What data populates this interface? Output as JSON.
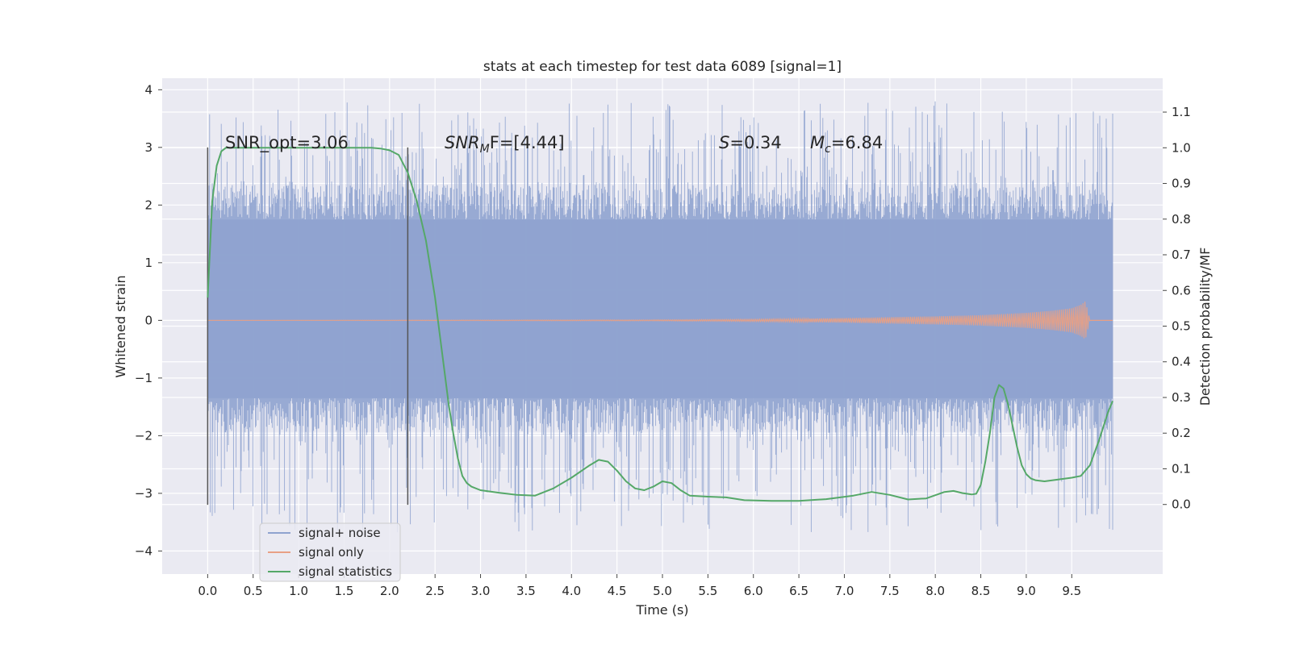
{
  "chart_data": {
    "type": "line",
    "title": "stats at each timestep for test data 6089 [signal=1]",
    "xlabel": "Time (s)",
    "ylabel": "Whitened strain",
    "ylabel_right": "Detection probability/MF",
    "xlim": [
      -0.5,
      10.5
    ],
    "ylim": [
      -4.4,
      4.2
    ],
    "ylim_right": [
      -0.195,
      1.195
    ],
    "x_ticks": [
      "0.0",
      "0.5",
      "1.0",
      "1.5",
      "2.0",
      "2.5",
      "3.0",
      "3.5",
      "4.0",
      "4.5",
      "5.0",
      "5.5",
      "6.0",
      "6.5",
      "7.0",
      "7.5",
      "8.0",
      "8.5",
      "9.0",
      "9.5"
    ],
    "y_ticks": [
      "4",
      "3",
      "2",
      "1",
      "0",
      "−1",
      "−2",
      "−3",
      "−4"
    ],
    "y_right_ticks": [
      "1.1",
      "1.0",
      "0.9",
      "0.8",
      "0.7",
      "0.6",
      "0.5",
      "0.4",
      "0.3",
      "0.2",
      "0.1",
      "0.0"
    ],
    "grid": true,
    "legend_position": "lower-left",
    "annotations": {
      "snr_opt": "SNR_opt=3.06",
      "snr_mf_label": "SNR",
      "snr_mf_sub": "M",
      "snr_mf_rest": "F=[4.44]",
      "s_label": "S",
      "s_rest": "=0.34",
      "mc_label": "M",
      "mc_sub": "c",
      "mc_rest": "=6.84"
    },
    "markers": [
      {
        "x": 0.0,
        "y_range": [
          -3.2,
          3.0
        ]
      },
      {
        "x": 2.2,
        "y_range": [
          -3.2,
          3.0
        ]
      }
    ],
    "series": [
      {
        "name": "signal+ noise",
        "color": "#8fa3cf",
        "x_range": [
          0.0,
          9.95
        ],
        "core_range": [
          -1.35,
          1.75
        ],
        "envelope_range": [
          -3.7,
          3.8
        ]
      },
      {
        "name": "signal only",
        "color": "#e8a085",
        "x": [
          0.0,
          5.0,
          6.0,
          7.0,
          8.0,
          8.5,
          9.0,
          9.3,
          9.5,
          9.6,
          9.65,
          9.7
        ],
        "amplitude": [
          0.0,
          0.01,
          0.02,
          0.04,
          0.07,
          0.09,
          0.13,
          0.17,
          0.21,
          0.27,
          0.33,
          0.0
        ]
      },
      {
        "name": "signal statistics",
        "color": "#55a868",
        "x": [
          0.0,
          0.05,
          0.1,
          0.15,
          0.2,
          0.3,
          0.5,
          1.0,
          1.5,
          1.8,
          1.9,
          2.0,
          2.1,
          2.2,
          2.3,
          2.4,
          2.5,
          2.55,
          2.6,
          2.65,
          2.7,
          2.75,
          2.8,
          2.85,
          2.9,
          3.0,
          3.2,
          3.4,
          3.6,
          3.8,
          4.0,
          4.2,
          4.3,
          4.4,
          4.5,
          4.6,
          4.7,
          4.8,
          4.9,
          5.0,
          5.1,
          5.2,
          5.3,
          5.5,
          5.7,
          5.9,
          6.2,
          6.5,
          6.8,
          7.1,
          7.3,
          7.5,
          7.7,
          7.9,
          8.1,
          8.2,
          8.3,
          8.4,
          8.45,
          8.5,
          8.55,
          8.6,
          8.65,
          8.7,
          8.75,
          8.8,
          8.85,
          8.9,
          8.95,
          9.0,
          9.05,
          9.1,
          9.2,
          9.35,
          9.5,
          9.6,
          9.7,
          9.8,
          9.9,
          9.95
        ],
        "values": [
          0.58,
          0.85,
          0.95,
          0.99,
          1.0,
          1.0,
          1.0,
          1.0,
          1.0,
          1.0,
          0.998,
          0.993,
          0.98,
          0.93,
          0.85,
          0.74,
          0.58,
          0.48,
          0.38,
          0.28,
          0.2,
          0.13,
          0.08,
          0.06,
          0.05,
          0.04,
          0.033,
          0.027,
          0.025,
          0.045,
          0.075,
          0.11,
          0.125,
          0.12,
          0.095,
          0.065,
          0.045,
          0.04,
          0.05,
          0.065,
          0.06,
          0.04,
          0.025,
          0.022,
          0.02,
          0.012,
          0.01,
          0.01,
          0.015,
          0.025,
          0.035,
          0.027,
          0.014,
          0.017,
          0.035,
          0.038,
          0.032,
          0.028,
          0.03,
          0.055,
          0.12,
          0.2,
          0.3,
          0.335,
          0.325,
          0.28,
          0.22,
          0.16,
          0.11,
          0.085,
          0.073,
          0.068,
          0.065,
          0.07,
          0.075,
          0.08,
          0.11,
          0.18,
          0.26,
          0.29
        ]
      }
    ]
  }
}
